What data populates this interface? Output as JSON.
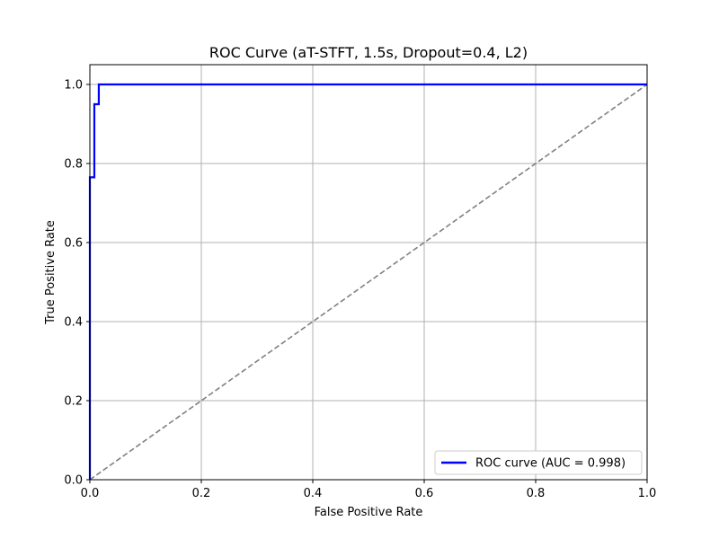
{
  "chart_data": {
    "type": "line",
    "title": "ROC Curve (aT-STFT, 1.5s, Dropout=0.4, L2)",
    "xlabel": "False Positive Rate",
    "ylabel": "True Positive Rate",
    "xlim": [
      0.0,
      1.0
    ],
    "ylim": [
      0.0,
      1.05
    ],
    "xticks": [
      0.0,
      0.2,
      0.4,
      0.6,
      0.8,
      1.0
    ],
    "yticks": [
      0.0,
      0.2,
      0.4,
      0.6,
      0.8,
      1.0
    ],
    "xtick_labels": [
      "0.0",
      "0.2",
      "0.4",
      "0.6",
      "0.8",
      "1.0"
    ],
    "ytick_labels": [
      "0.0",
      "0.2",
      "0.4",
      "0.6",
      "0.8",
      "1.0"
    ],
    "grid": true,
    "legend_position": "bottom-right",
    "series": [
      {
        "name": "ROC curve (AUC = 0.998)",
        "color": "#0000ff",
        "style": "solid",
        "x": [
          0.0,
          0.0,
          0.008,
          0.008,
          0.016,
          0.016,
          1.0
        ],
        "y": [
          0.0,
          0.765,
          0.765,
          0.95,
          0.95,
          1.0,
          1.0
        ]
      },
      {
        "color": "#808080",
        "style": "dashed",
        "x": [
          0.0,
          1.0
        ],
        "y": [
          0.0,
          1.0
        ]
      }
    ]
  }
}
